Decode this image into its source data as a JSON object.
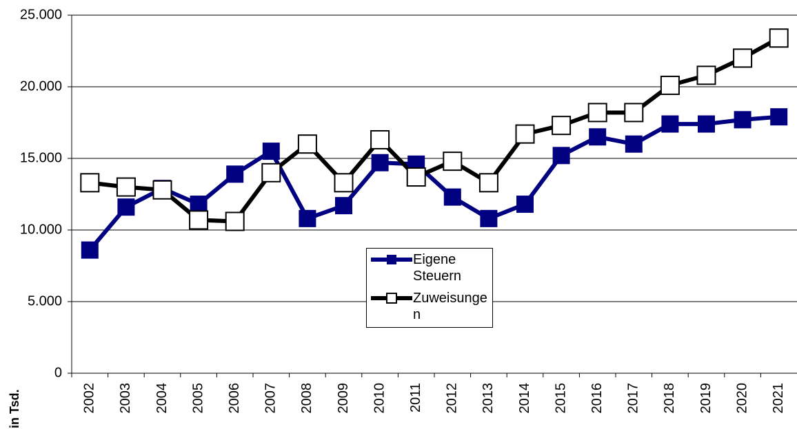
{
  "chart_data": {
    "type": "line",
    "y_label": "in Tsd.",
    "categories": [
      "2002",
      "2003",
      "2004",
      "2005",
      "2006",
      "2007",
      "2008",
      "2009",
      "2010",
      "2011",
      "2012",
      "2013",
      "2014",
      "2015",
      "2016",
      "2017",
      "2018",
      "2019",
      "2020",
      "2021"
    ],
    "series": [
      {
        "name": "Eigene Steuern",
        "color": "#000080",
        "marker": "filled-square",
        "values": [
          8600,
          11600,
          12900,
          11800,
          13900,
          15500,
          10800,
          11700,
          14700,
          14600,
          12300,
          10800,
          11800,
          15200,
          16500,
          16000,
          17400,
          17400,
          17700,
          17900
        ]
      },
      {
        "name": "Zuweisungen",
        "color": "#000000",
        "marker": "open-square",
        "values": [
          13300,
          13000,
          12800,
          10700,
          10600,
          14000,
          16000,
          13300,
          16300,
          13700,
          14800,
          13300,
          16700,
          17300,
          18200,
          18200,
          20100,
          20800,
          22000,
          23400
        ]
      }
    ],
    "ylim": [
      0,
      25000
    ],
    "yticks": [
      0,
      {
        "value": 5000,
        "label": "5.000"
      },
      {
        "value": 10000,
        "label": "10.000"
      },
      {
        "value": 15000,
        "label": "15.000"
      },
      {
        "value": 20000,
        "label": "20.000"
      },
      {
        "value": 25000,
        "label": "25.000"
      }
    ],
    "grid": true,
    "legend": "center"
  }
}
